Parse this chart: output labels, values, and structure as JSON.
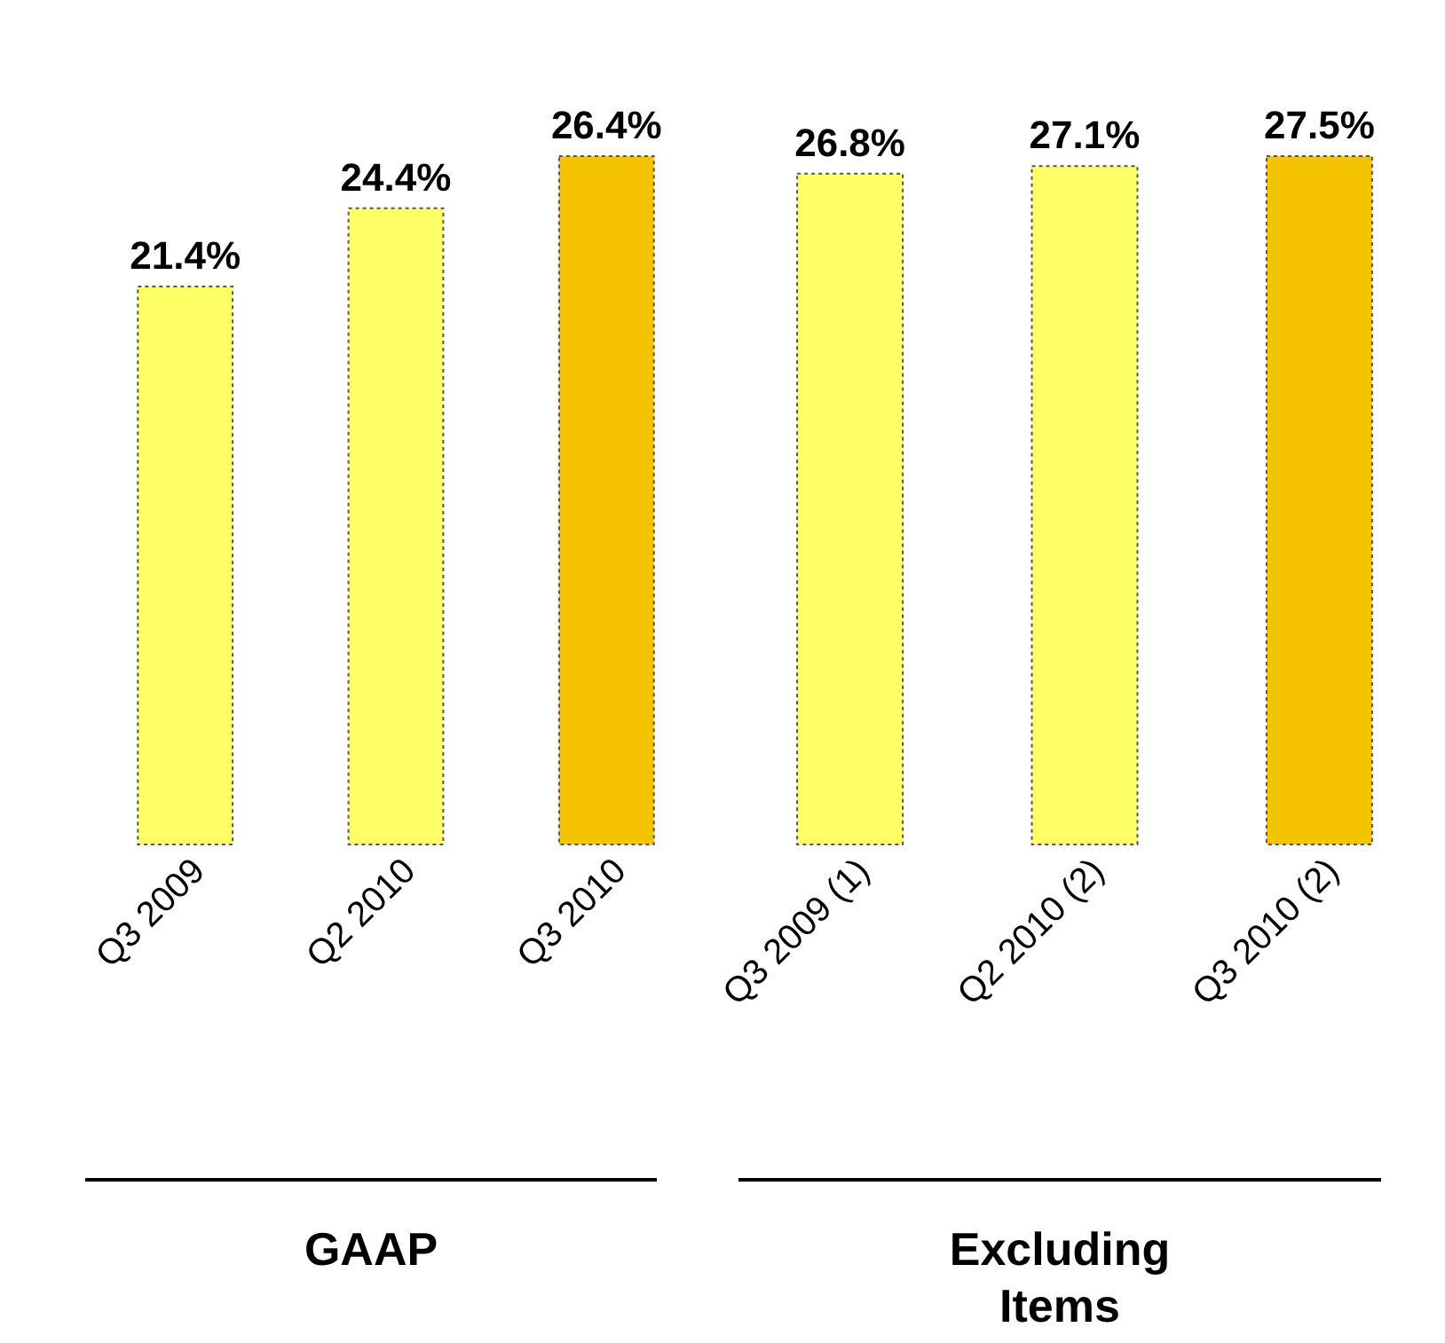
{
  "chart_data": [
    {
      "type": "bar",
      "xlabel": "GAAP",
      "categories": [
        "Q3 2009",
        "Q2 2010",
        "Q3 2010"
      ],
      "values": [
        21.4,
        24.4,
        26.4
      ],
      "colors": [
        "#ffff66",
        "#ffff66",
        "#f5c400"
      ],
      "value_labels": [
        "21.4%",
        "24.4%",
        "26.4%"
      ],
      "tick_labels": "x"
    },
    {
      "type": "bar",
      "xlabel": "Excluding Items",
      "categories": [
        "Q3 2009 (1)",
        "Q2 2010 (2)",
        "Q3 2010 (2)"
      ],
      "values": [
        26.8,
        27.1,
        27.5
      ],
      "colors": [
        "#ffff66",
        "#ffff66",
        "#f5c400"
      ],
      "value_labels": [
        "26.8%",
        "27.1%",
        "27.5%"
      ],
      "tick_labels": "x"
    }
  ]
}
